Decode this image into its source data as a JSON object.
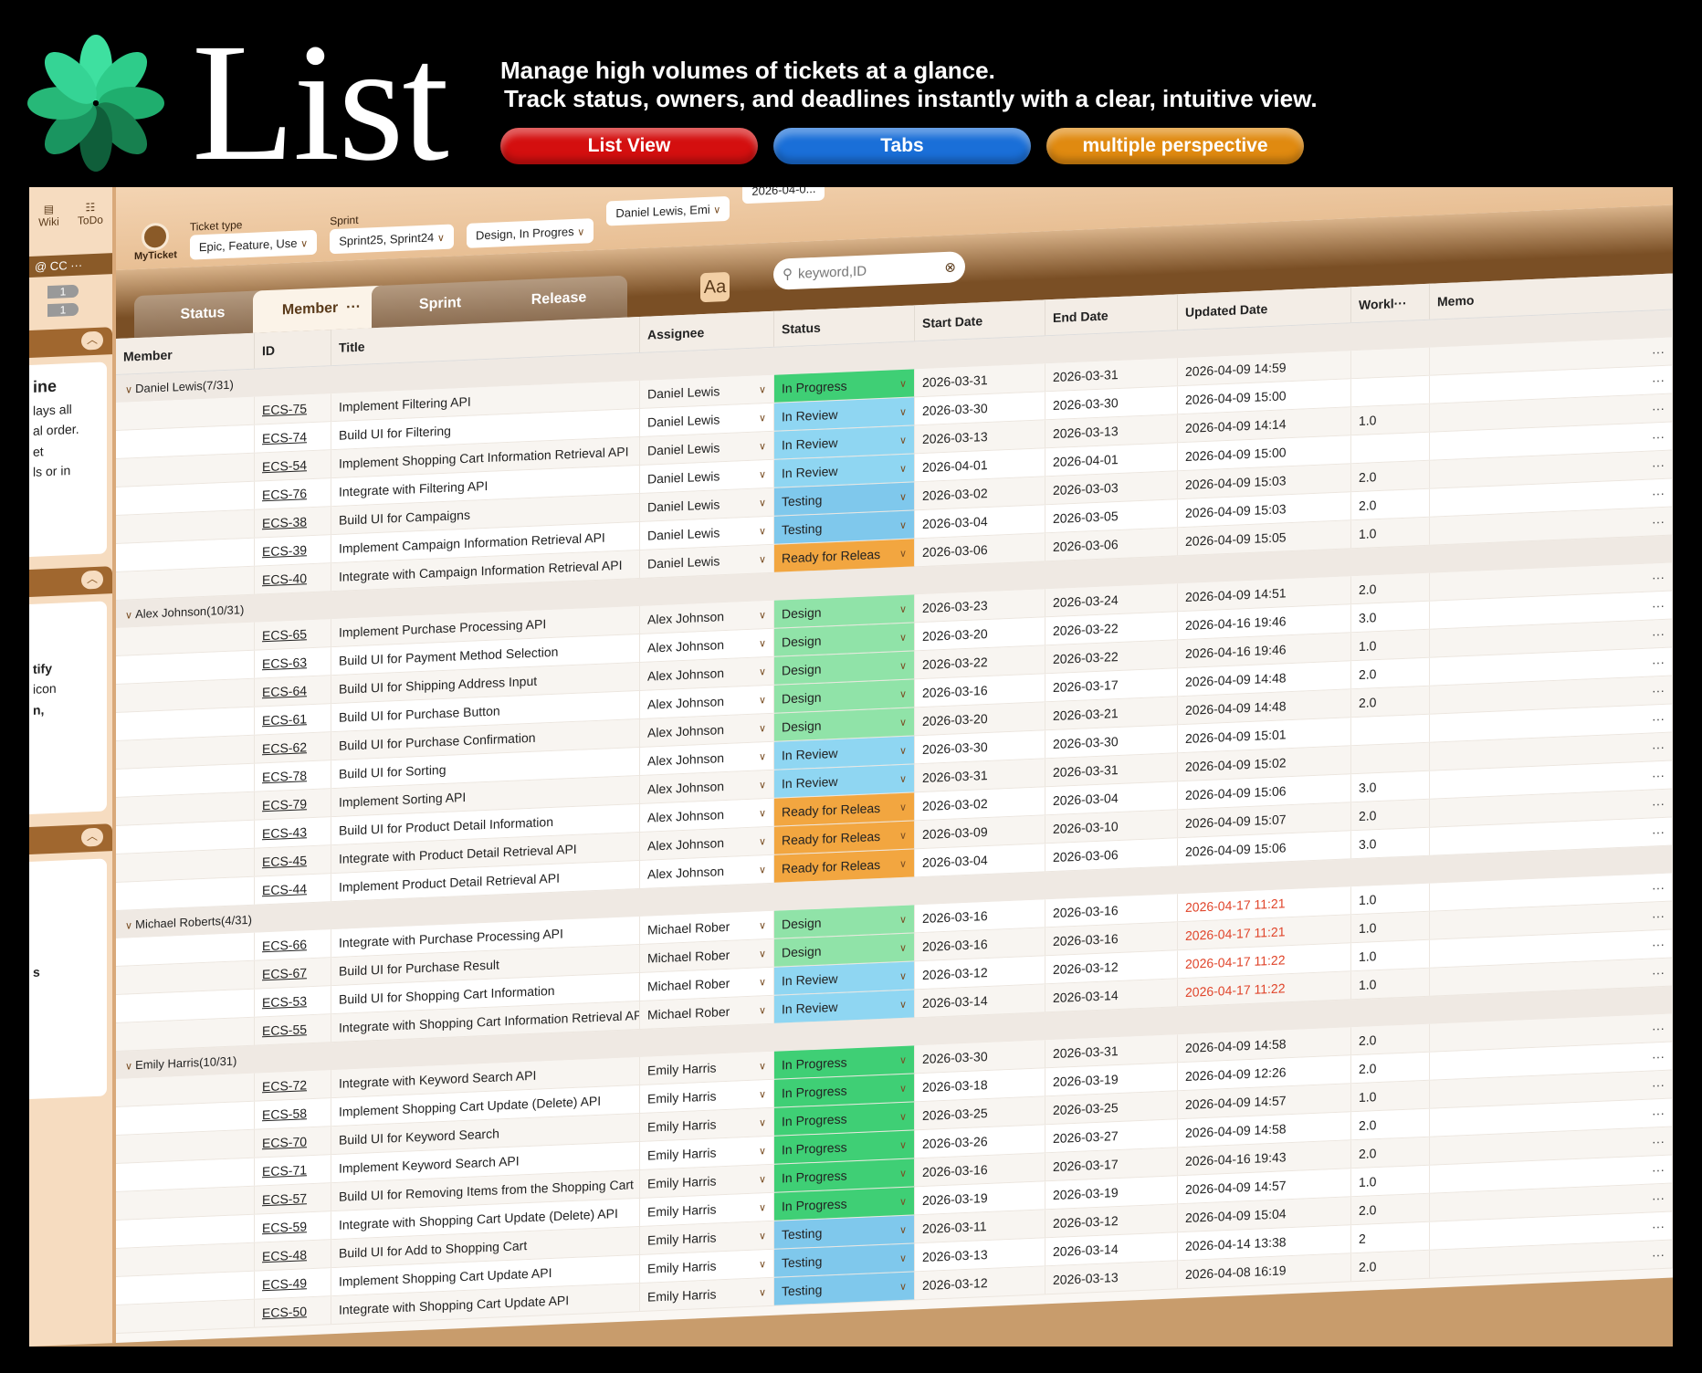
{
  "hero": {
    "title": "List",
    "tagline_1": "Manage high volumes of tickets at a glance.",
    "tagline_2": "Track status, owners, and deadlines instantly with a clear, intuitive view.",
    "buttons": [
      "List View",
      "Tabs",
      "multiple perspective"
    ],
    "button_colors": [
      "#d40f0f",
      "#1a6fd8",
      "#e08a10"
    ],
    "logo_color": "#2ecc8a"
  },
  "sidebar": {
    "wiki": "Wiki",
    "todo": "ToDo",
    "bar": "@  CC  ···",
    "badges": [
      "1",
      "1"
    ],
    "panel1": [
      "ine",
      "lays all",
      "al order.",
      "et",
      "ls or in"
    ],
    "panel2": [
      "tify",
      "icon",
      "n,"
    ],
    "panel3": [
      "s"
    ]
  },
  "filters": {
    "myticket": "MyTicket",
    "ticket_type_label": "Ticket type",
    "ticket_type": "Epic, Feature, Use",
    "sprint_label": "Sprint",
    "sprint": "Sprint25, Sprint24",
    "status": "Design, In Progres",
    "member": "Daniel Lewis, Emi",
    "date": "2026-04-0..."
  },
  "tabs": [
    "Status",
    "Member",
    "Sprint",
    "Release"
  ],
  "active_tab": "Member",
  "font_button": "Aa",
  "search_placeholder": "keyword,ID",
  "columns": [
    "Member",
    "ID",
    "Title",
    "Assignee",
    "Status",
    "Start Date",
    "End Date",
    "Updated Date",
    "Workl···",
    "Memo"
  ],
  "status_colors": {
    "In Progress": "#3fcf75",
    "In Review": "#8fd6f2",
    "Testing": "#7fc8ec",
    "Design": "#90e3a8",
    "Ready for Releas": "#f2a640"
  },
  "groups": [
    {
      "label": "Daniel Lewis(7/31)",
      "rows": [
        {
          "id": "ECS-75",
          "title": "Implement Filtering API",
          "assignee": "Daniel Lewis",
          "status": "In Progress",
          "start": "2026-03-31",
          "end": "2026-03-31",
          "updated": "2026-04-09 14:59",
          "work": ""
        },
        {
          "id": "ECS-74",
          "title": "Build UI for Filtering",
          "assignee": "Daniel Lewis",
          "status": "In Review",
          "start": "2026-03-30",
          "end": "2026-03-30",
          "updated": "2026-04-09 15:00",
          "work": ""
        },
        {
          "id": "ECS-54",
          "title": "Implement Shopping Cart Information Retrieval API",
          "assignee": "Daniel Lewis",
          "status": "In Review",
          "start": "2026-03-13",
          "end": "2026-03-13",
          "updated": "2026-04-09 14:14",
          "work": "1.0"
        },
        {
          "id": "ECS-76",
          "title": "Integrate with Filtering API",
          "assignee": "Daniel Lewis",
          "status": "In Review",
          "start": "2026-04-01",
          "end": "2026-04-01",
          "updated": "2026-04-09 15:00",
          "work": ""
        },
        {
          "id": "ECS-38",
          "title": "Build UI for Campaigns",
          "assignee": "Daniel Lewis",
          "status": "Testing",
          "start": "2026-03-02",
          "end": "2026-03-03",
          "updated": "2026-04-09 15:03",
          "work": "2.0"
        },
        {
          "id": "ECS-39",
          "title": "Implement Campaign Information Retrieval API",
          "assignee": "Daniel Lewis",
          "status": "Testing",
          "start": "2026-03-04",
          "end": "2026-03-05",
          "updated": "2026-04-09 15:03",
          "work": "2.0"
        },
        {
          "id": "ECS-40",
          "title": "Integrate with Campaign Information Retrieval API",
          "assignee": "Daniel Lewis",
          "status": "Ready for Releas",
          "start": "2026-03-06",
          "end": "2026-03-06",
          "updated": "2026-04-09 15:05",
          "work": "1.0"
        }
      ]
    },
    {
      "label": "Alex Johnson(10/31)",
      "rows": [
        {
          "id": "ECS-65",
          "title": "Implement Purchase Processing API",
          "assignee": "Alex Johnson",
          "status": "Design",
          "start": "2026-03-23",
          "end": "2026-03-24",
          "updated": "2026-04-09 14:51",
          "work": "2.0"
        },
        {
          "id": "ECS-63",
          "title": "Build UI for Payment Method Selection",
          "assignee": "Alex Johnson",
          "status": "Design",
          "start": "2026-03-20",
          "end": "2026-03-22",
          "updated": "2026-04-16 19:46",
          "work": "3.0"
        },
        {
          "id": "ECS-64",
          "title": "Build UI for Shipping Address Input",
          "assignee": "Alex Johnson",
          "status": "Design",
          "start": "2026-03-22",
          "end": "2026-03-22",
          "updated": "2026-04-16 19:46",
          "work": "1.0"
        },
        {
          "id": "ECS-61",
          "title": "Build UI for Purchase Button",
          "assignee": "Alex Johnson",
          "status": "Design",
          "start": "2026-03-16",
          "end": "2026-03-17",
          "updated": "2026-04-09 14:48",
          "work": "2.0"
        },
        {
          "id": "ECS-62",
          "title": "Build UI for Purchase Confirmation",
          "assignee": "Alex Johnson",
          "status": "Design",
          "start": "2026-03-20",
          "end": "2026-03-21",
          "updated": "2026-04-09 14:48",
          "work": "2.0"
        },
        {
          "id": "ECS-78",
          "title": "Build UI for Sorting",
          "assignee": "Alex Johnson",
          "status": "In Review",
          "start": "2026-03-30",
          "end": "2026-03-30",
          "updated": "2026-04-09 15:01",
          "work": ""
        },
        {
          "id": "ECS-79",
          "title": "Implement Sorting API",
          "assignee": "Alex Johnson",
          "status": "In Review",
          "start": "2026-03-31",
          "end": "2026-03-31",
          "updated": "2026-04-09 15:02",
          "work": ""
        },
        {
          "id": "ECS-43",
          "title": "Build UI for Product Detail Information",
          "assignee": "Alex Johnson",
          "status": "Ready for Releas",
          "start": "2026-03-02",
          "end": "2026-03-04",
          "updated": "2026-04-09 15:06",
          "work": "3.0"
        },
        {
          "id": "ECS-45",
          "title": "Integrate with Product Detail Retrieval API",
          "assignee": "Alex Johnson",
          "status": "Ready for Releas",
          "start": "2026-03-09",
          "end": "2026-03-10",
          "updated": "2026-04-09 15:07",
          "work": "2.0"
        },
        {
          "id": "ECS-44",
          "title": "Implement Product Detail Retrieval API",
          "assignee": "Alex Johnson",
          "status": "Ready for Releas",
          "start": "2026-03-04",
          "end": "2026-03-06",
          "updated": "2026-04-09 15:06",
          "work": "3.0"
        }
      ]
    },
    {
      "label": "Michael Roberts(4/31)",
      "rows": [
        {
          "id": "ECS-66",
          "title": "Integrate with Purchase Processing API",
          "assignee": "Michael Rober",
          "status": "Design",
          "start": "2026-03-16",
          "end": "2026-03-16",
          "updated": "2026-04-17 11:21",
          "work": "1.0",
          "updated_red": true
        },
        {
          "id": "ECS-67",
          "title": "Build UI for Purchase Result",
          "assignee": "Michael Rober",
          "status": "Design",
          "start": "2026-03-16",
          "end": "2026-03-16",
          "updated": "2026-04-17 11:21",
          "work": "1.0",
          "updated_red": true
        },
        {
          "id": "ECS-53",
          "title": "Build UI for Shopping Cart Information",
          "assignee": "Michael Rober",
          "status": "In Review",
          "start": "2026-03-12",
          "end": "2026-03-12",
          "updated": "2026-04-17 11:22",
          "work": "1.0",
          "updated_red": true
        },
        {
          "id": "ECS-55",
          "title": "Integrate with Shopping Cart Information Retrieval API",
          "assignee": "Michael Rober",
          "status": "In Review",
          "start": "2026-03-14",
          "end": "2026-03-14",
          "updated": "2026-04-17 11:22",
          "work": "1.0",
          "updated_red": true
        }
      ]
    },
    {
      "label": "Emily Harris(10/31)",
      "rows": [
        {
          "id": "ECS-72",
          "title": "Integrate with Keyword Search API",
          "assignee": "Emily Harris",
          "status": "In Progress",
          "start": "2026-03-30",
          "end": "2026-03-31",
          "updated": "2026-04-09 14:58",
          "work": "2.0"
        },
        {
          "id": "ECS-58",
          "title": "Implement Shopping Cart Update (Delete) API",
          "assignee": "Emily Harris",
          "status": "In Progress",
          "start": "2026-03-18",
          "end": "2026-03-19",
          "updated": "2026-04-09 12:26",
          "work": "2.0"
        },
        {
          "id": "ECS-70",
          "title": "Build UI for Keyword Search",
          "assignee": "Emily Harris",
          "status": "In Progress",
          "start": "2026-03-25",
          "end": "2026-03-25",
          "updated": "2026-04-09 14:57",
          "work": "1.0"
        },
        {
          "id": "ECS-71",
          "title": "Implement Keyword Search API",
          "assignee": "Emily Harris",
          "status": "In Progress",
          "start": "2026-03-26",
          "end": "2026-03-27",
          "updated": "2026-04-09 14:58",
          "work": "2.0"
        },
        {
          "id": "ECS-57",
          "title": "Build UI for Removing Items from the Shopping Cart",
          "assignee": "Emily Harris",
          "status": "In Progress",
          "start": "2026-03-16",
          "end": "2026-03-17",
          "updated": "2026-04-16 19:43",
          "work": "2.0"
        },
        {
          "id": "ECS-59",
          "title": "Integrate with Shopping Cart Update (Delete) API",
          "assignee": "Emily Harris",
          "status": "In Progress",
          "start": "2026-03-19",
          "end": "2026-03-19",
          "updated": "2026-04-09 14:57",
          "work": "1.0"
        },
        {
          "id": "ECS-48",
          "title": "Build UI for Add to Shopping Cart",
          "assignee": "Emily Harris",
          "status": "Testing",
          "start": "2026-03-11",
          "end": "2026-03-12",
          "updated": "2026-04-09 15:04",
          "work": "2.0"
        },
        {
          "id": "ECS-49",
          "title": "Implement Shopping Cart Update API",
          "assignee": "Emily Harris",
          "status": "Testing",
          "start": "2026-03-13",
          "end": "2026-03-14",
          "updated": "2026-04-14 13:38",
          "work": "2"
        },
        {
          "id": "ECS-50",
          "title": "Integrate with Shopping Cart Update API",
          "assignee": "Emily Harris",
          "status": "Testing",
          "start": "2026-03-12",
          "end": "2026-03-13",
          "updated": "2026-04-08 16:19",
          "work": "2.0"
        }
      ]
    }
  ],
  "row_more": "···"
}
